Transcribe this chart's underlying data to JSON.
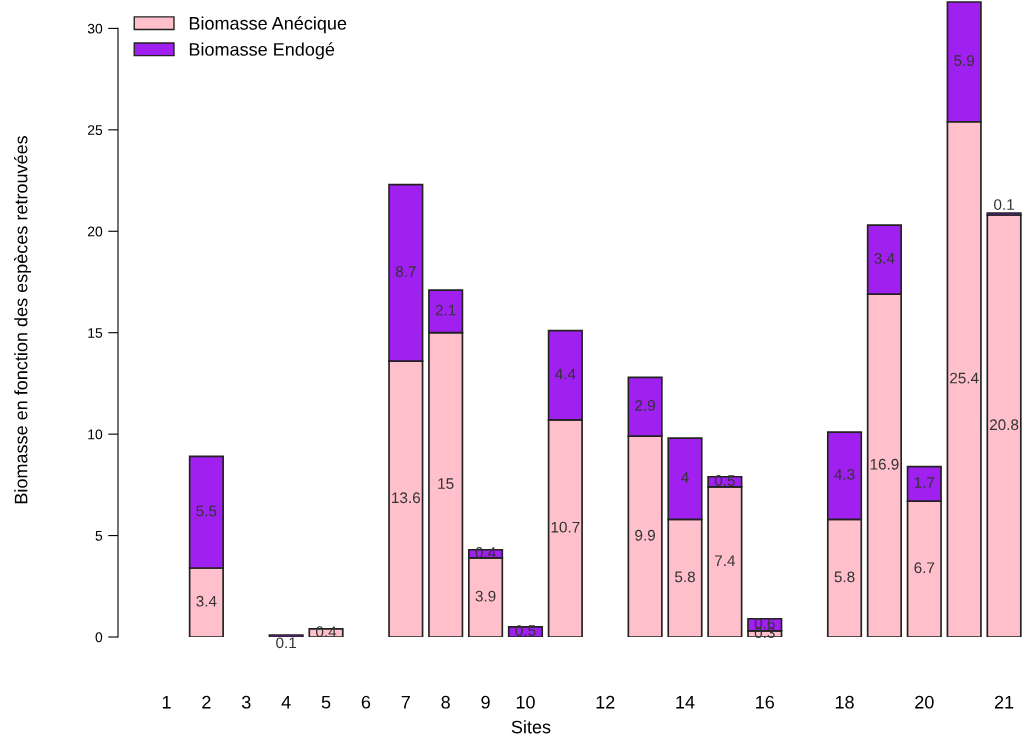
{
  "chart_data": {
    "type": "bar",
    "stacked": true,
    "xlabel": "Sites",
    "ylabel": "Biomasse en fonction des espèces retrouvées",
    "categories": [
      "1",
      "2",
      "3",
      "4",
      "5",
      "6",
      "7",
      "8",
      "9",
      "10",
      null,
      "12",
      null,
      "14",
      null,
      "16",
      null,
      "18",
      null,
      "20",
      null,
      "21"
    ],
    "series": [
      {
        "name": "Biomasse Anécique",
        "color": "#ffc0cb",
        "values": [
          0,
          3.4,
          0,
          0,
          0.4,
          0,
          13.6,
          15,
          3.9,
          0,
          10.7,
          0,
          9.9,
          5.8,
          7.4,
          0.3,
          0,
          5.8,
          16.9,
          6.7,
          25.4,
          20.8
        ],
        "value_labels": [
          null,
          "3.4",
          null,
          null,
          "0.4",
          null,
          "13.6",
          "15",
          "3.9",
          null,
          "10.7",
          null,
          "9.9",
          "5.8",
          "7.4",
          "0.3",
          null,
          "5.8",
          "16.9",
          "6.7",
          "25.4",
          "20.8"
        ]
      },
      {
        "name": "Biomasse Endogé",
        "color": "#a020f0",
        "values": [
          0,
          5.5,
          0,
          0.1,
          0,
          0,
          8.7,
          2.1,
          0.4,
          0.5,
          4.4,
          0,
          2.9,
          4,
          0.5,
          0.6,
          0,
          4.3,
          3.4,
          1.7,
          5.9,
          0.1
        ],
        "value_labels": [
          null,
          "5.5",
          null,
          "0.1",
          null,
          null,
          "8.7",
          "2.1",
          "0.4",
          "0.5",
          "4.4",
          null,
          "2.9",
          "4",
          "0.5",
          "0.6",
          null,
          "4.3",
          "3.4",
          "1.7",
          "5.9",
          "0.1"
        ]
      }
    ],
    "ylim": [
      0,
      31.4
    ],
    "yticks": [
      0,
      5,
      10,
      15,
      20,
      25,
      30
    ],
    "grid": false,
    "legend": "top left"
  }
}
